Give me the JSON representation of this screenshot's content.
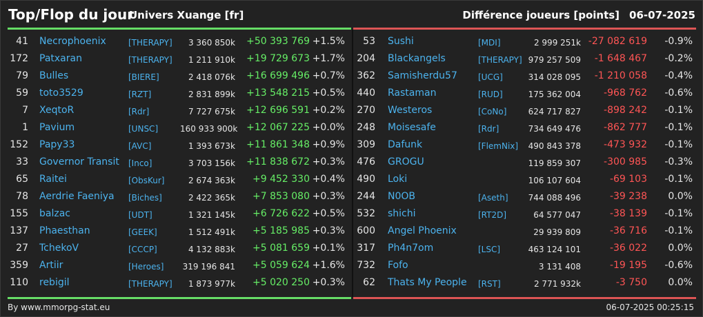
{
  "header": {
    "title": "Top/Flop du jour",
    "universe": "Univers Xuange [fr]",
    "metric": "Différence joueurs [points]",
    "date": "06-07-2025"
  },
  "colors": {
    "gain": "#66ee66",
    "loss": "#ff5555",
    "link": "#4cb3ee",
    "top_bar": "#66dd66",
    "flop_bar": "#dd5555"
  },
  "top": [
    {
      "rank": "41",
      "name": "Necrophoenix",
      "alliance": "[THERAPY]",
      "points": "3 360 850k",
      "diff": "+50 393 769",
      "pct": "+1.5%"
    },
    {
      "rank": "172",
      "name": "Patxaran",
      "alliance": "[THERAPY]",
      "points": "1 211 910k",
      "diff": "+19 729 673",
      "pct": "+1.7%"
    },
    {
      "rank": "79",
      "name": "Bulles",
      "alliance": "[BIERE]",
      "points": "2 418 076k",
      "diff": "+16 699 496",
      "pct": "+0.7%"
    },
    {
      "rank": "59",
      "name": "toto3529",
      "alliance": "[RZT]",
      "points": "2 831 899k",
      "diff": "+13 548 215",
      "pct": "+0.5%"
    },
    {
      "rank": "7",
      "name": "XeqtoR",
      "alliance": "[Rdr]",
      "points": "7 727 675k",
      "diff": "+12 696 591",
      "pct": "+0.2%"
    },
    {
      "rank": "1",
      "name": "Pavium",
      "alliance": "[UNSC]",
      "points": "160 933 900k",
      "diff": "+12 067 225",
      "pct": "+0.0%"
    },
    {
      "rank": "152",
      "name": "Papy33",
      "alliance": "[AVC]",
      "points": "1 393 673k",
      "diff": "+11 861 348",
      "pct": "+0.9%"
    },
    {
      "rank": "33",
      "name": "Governor Transit",
      "alliance": "[Inco]",
      "points": "3 703 156k",
      "diff": "+11 838 672",
      "pct": "+0.3%"
    },
    {
      "rank": "65",
      "name": "Raitei",
      "alliance": "[ObsKur]",
      "points": "2 674 363k",
      "diff": "+9 452 330",
      "pct": "+0.4%"
    },
    {
      "rank": "78",
      "name": "Aerdrie Faeniya",
      "alliance": "[Biches]",
      "points": "2 422 365k",
      "diff": "+7 853 080",
      "pct": "+0.3%"
    },
    {
      "rank": "155",
      "name": "balzac",
      "alliance": "[UDT]",
      "points": "1 321 145k",
      "diff": "+6 726 622",
      "pct": "+0.5%"
    },
    {
      "rank": "137",
      "name": "Phaesthan",
      "alliance": "[GEEK]",
      "points": "1 512 491k",
      "diff": "+5 185 985",
      "pct": "+0.3%"
    },
    {
      "rank": "27",
      "name": "TchekoV",
      "alliance": "[CCCP]",
      "points": "4 132 883k",
      "diff": "+5 081 659",
      "pct": "+0.1%"
    },
    {
      "rank": "359",
      "name": "Artiir",
      "alliance": "[Heroes]",
      "points": "319 196 841",
      "diff": "+5 059 624",
      "pct": "+1.6%"
    },
    {
      "rank": "110",
      "name": "rebigil",
      "alliance": "[THERAPY]",
      "points": "1 873 977k",
      "diff": "+5 020 250",
      "pct": "+0.3%"
    }
  ],
  "flop": [
    {
      "rank": "53",
      "name": "Sushi",
      "alliance": "[MDI]",
      "points": "2 999 251k",
      "diff": "-27 082 619",
      "pct": "-0.9%"
    },
    {
      "rank": "204",
      "name": "Blackangels",
      "alliance": "[THERAPY]",
      "points": "979 257 509",
      "diff": "-1 648 467",
      "pct": "-0.2%"
    },
    {
      "rank": "362",
      "name": "Samisherdu57",
      "alliance": "[UCG]",
      "points": "314 028 095",
      "diff": "-1 210 058",
      "pct": "-0.4%"
    },
    {
      "rank": "440",
      "name": "Rastaman",
      "alliance": "[RUD]",
      "points": "175 362 004",
      "diff": "-968 762",
      "pct": "-0.6%"
    },
    {
      "rank": "270",
      "name": "Westeros",
      "alliance": "[CoNo]",
      "points": "624 717 827",
      "diff": "-898 242",
      "pct": "-0.1%"
    },
    {
      "rank": "248",
      "name": "Moisesafe",
      "alliance": "[Rdr]",
      "points": "734 649 476",
      "diff": "-862 777",
      "pct": "-0.1%"
    },
    {
      "rank": "309",
      "name": "Dafunk",
      "alliance": "[FlemNix]",
      "points": "490 843 378",
      "diff": "-473 932",
      "pct": "-0.1%"
    },
    {
      "rank": "476",
      "name": "GROGU",
      "alliance": "",
      "points": "119 859 307",
      "diff": "-300 985",
      "pct": "-0.3%"
    },
    {
      "rank": "490",
      "name": "Loki",
      "alliance": "",
      "points": "106 107 604",
      "diff": "-69 103",
      "pct": "-0.1%"
    },
    {
      "rank": "244",
      "name": "N0OB",
      "alliance": "[Aseth]",
      "points": "744 088 496",
      "diff": "-39 238",
      "pct": "0.0%"
    },
    {
      "rank": "532",
      "name": "shichi",
      "alliance": "[RT2D]",
      "points": "64 577 047",
      "diff": "-38 139",
      "pct": "-0.1%"
    },
    {
      "rank": "600",
      "name": "Angel Phoenix",
      "alliance": "",
      "points": "29 939 809",
      "diff": "-36 716",
      "pct": "-0.1%"
    },
    {
      "rank": "317",
      "name": "Ph4n7om",
      "alliance": "[LSC]",
      "points": "463 124 101",
      "diff": "-36 022",
      "pct": "0.0%"
    },
    {
      "rank": "732",
      "name": "Fofo",
      "alliance": "",
      "points": "3 131 408",
      "diff": "-19 195",
      "pct": "-0.6%"
    },
    {
      "rank": "62",
      "name": "Thats My People",
      "alliance": "[RST]",
      "points": "2 771 932k",
      "diff": "-3 750",
      "pct": "0.0%"
    }
  ],
  "footer": {
    "source": "By www.mmorpg-stat.eu",
    "timestamp": "06-07-2025 00:25:15"
  }
}
